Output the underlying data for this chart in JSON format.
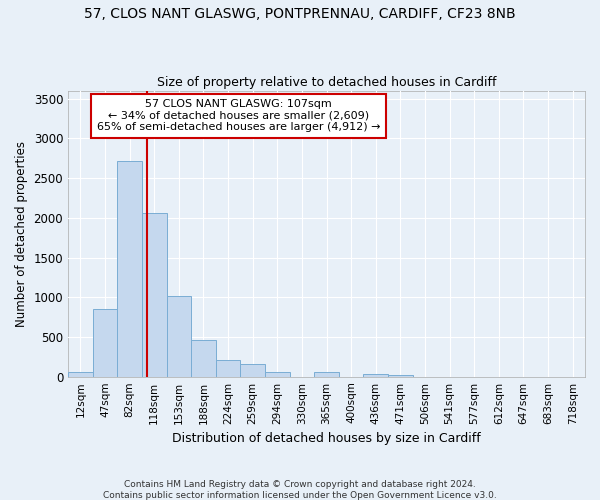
{
  "title": "57, CLOS NANT GLASWG, PONTPRENNAU, CARDIFF, CF23 8NB",
  "subtitle": "Size of property relative to detached houses in Cardiff",
  "xlabel": "Distribution of detached houses by size in Cardiff",
  "ylabel": "Number of detached properties",
  "bar_color": "#c5d8ee",
  "bar_edge_color": "#7aadd4",
  "background_color": "#e8f0f8",
  "grid_color": "#ffffff",
  "annotation_line_color": "#cc0000",
  "annotation_text_line1": "57 CLOS NANT GLASWG: 107sqm",
  "annotation_text_line2": "← 34% of detached houses are smaller (2,609)",
  "annotation_text_line3": "65% of semi-detached houses are larger (4,912) →",
  "footer_line1": "Contains HM Land Registry data © Crown copyright and database right 2024.",
  "footer_line2": "Contains public sector information licensed under the Open Government Licence v3.0.",
  "bin_labels": [
    "12sqm",
    "47sqm",
    "82sqm",
    "118sqm",
    "153sqm",
    "188sqm",
    "224sqm",
    "259sqm",
    "294sqm",
    "330sqm",
    "365sqm",
    "400sqm",
    "436sqm",
    "471sqm",
    "506sqm",
    "541sqm",
    "577sqm",
    "612sqm",
    "647sqm",
    "683sqm",
    "718sqm"
  ],
  "bar_values": [
    60,
    850,
    2720,
    2060,
    1010,
    460,
    215,
    155,
    65,
    0,
    55,
    0,
    40,
    25,
    0,
    0,
    0,
    0,
    0,
    0,
    0
  ],
  "ylim": [
    0,
    3600
  ],
  "yticks": [
    0,
    500,
    1000,
    1500,
    2000,
    2500,
    3000,
    3500
  ]
}
